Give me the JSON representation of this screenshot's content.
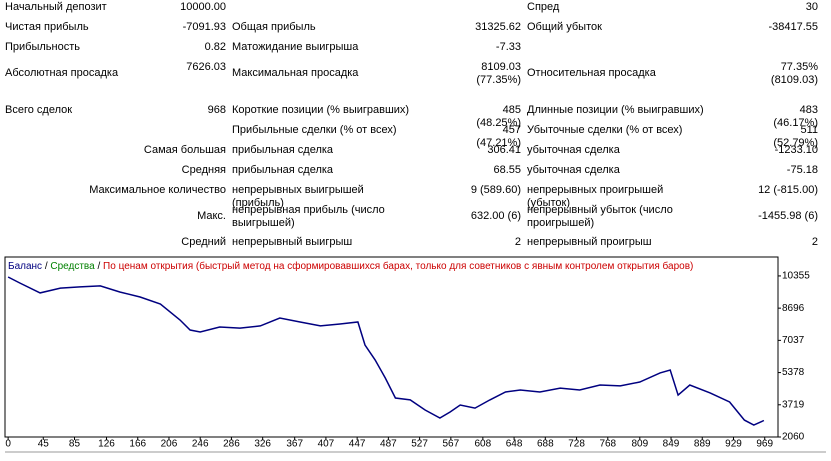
{
  "report": {
    "rows": [
      [
        "Начальный депозит",
        "10000.00",
        "Спред",
        "30"
      ],
      [
        "Чистая прибыль",
        "-7091.93",
        "Общая прибыль",
        "31325.62",
        "Общий убыток",
        "-38417.55"
      ],
      [
        "Прибыльность",
        "0.82",
        "Матожидание выигрыша",
        "-7.33"
      ],
      [
        "Абсолютная просадка",
        "7626.03",
        "Максимальная просадка",
        "8109.03 (77.35%)",
        "Относительная просадка",
        "77.35% (8109.03)"
      ],
      [
        "Всего сделок",
        "968",
        "Короткие позиции (% выигравших)",
        "485 (48.25%)",
        "Длинные позиции (% выигравших)",
        "483 (46.17%)"
      ],
      [
        "Прибыльные сделки (% от всех)",
        "457 (47.21%)",
        "Убыточные сделки (% от всех)",
        "511 (52.79%)"
      ],
      [
        "Самая большая",
        "прибыльная сделка",
        "306.41",
        "убыточная сделка",
        "-1233.10"
      ],
      [
        "Средняя",
        "прибыльная сделка",
        "68.55",
        "убыточная сделка",
        "-75.18"
      ],
      [
        "Максимальное количество",
        "непрерывных выигрышей (прибыль)",
        "9 (589.60)",
        "непрерывных проигрышей (убыток)",
        "12 (-815.00)"
      ],
      [
        "Макс.",
        "непрерывная прибыль (число выигрышей)",
        "632.00 (6)",
        "непрерывный убыток (число проигрышей)",
        "-1455.98 (6)"
      ],
      [
        "Средний",
        "непрерывный выигрыш",
        "2",
        "непрерывный проигрыш",
        "2"
      ]
    ]
  },
  "chart_data": {
    "type": "line",
    "legend": [
      {
        "name": "Баланс",
        "color": "#000080"
      },
      {
        "name": "Средства",
        "color": "#008000"
      }
    ],
    "note": "По ценам открытия (быстрый метод на сформировавшихся барах, только для советников с явным контролем открытия баров)",
    "note_color": "#cc0000",
    "x": [
      0,
      15,
      41,
      67,
      92,
      118,
      143,
      169,
      195,
      220,
      233,
      246,
      271,
      297,
      323,
      348,
      374,
      400,
      425,
      448,
      457,
      470,
      483,
      496,
      515,
      534,
      553,
      566,
      579,
      598,
      617,
      637,
      656,
      681,
      707,
      732,
      758,
      784,
      809,
      835,
      848,
      858,
      873,
      899,
      924,
      943,
      955,
      968
    ],
    "series": [
      {
        "name": "Баланс",
        "color": "#000080",
        "values": [
          10300,
          9990,
          9480,
          9730,
          9790,
          9840,
          9530,
          9270,
          8910,
          8090,
          7570,
          7470,
          7725,
          7670,
          7780,
          8190,
          7980,
          7780,
          7880,
          7980,
          6800,
          6030,
          5100,
          4070,
          3970,
          3450,
          3040,
          3350,
          3710,
          3550,
          3970,
          4380,
          4480,
          4380,
          4580,
          4480,
          4740,
          4690,
          4890,
          5360,
          5510,
          4220,
          4740,
          4330,
          3860,
          2930,
          2680,
          2908
        ]
      }
    ],
    "xlim": [
      -4,
      986
    ],
    "ylim": [
      2060,
      11330
    ],
    "xticks": [
      0,
      45,
      85,
      126,
      166,
      206,
      246,
      286,
      326,
      367,
      407,
      447,
      487,
      527,
      567,
      608,
      648,
      688,
      728,
      768,
      809,
      849,
      889,
      929,
      969
    ],
    "yticks": [
      2060,
      3719,
      5378,
      7037,
      8696,
      10355
    ],
    "grid": false
  }
}
